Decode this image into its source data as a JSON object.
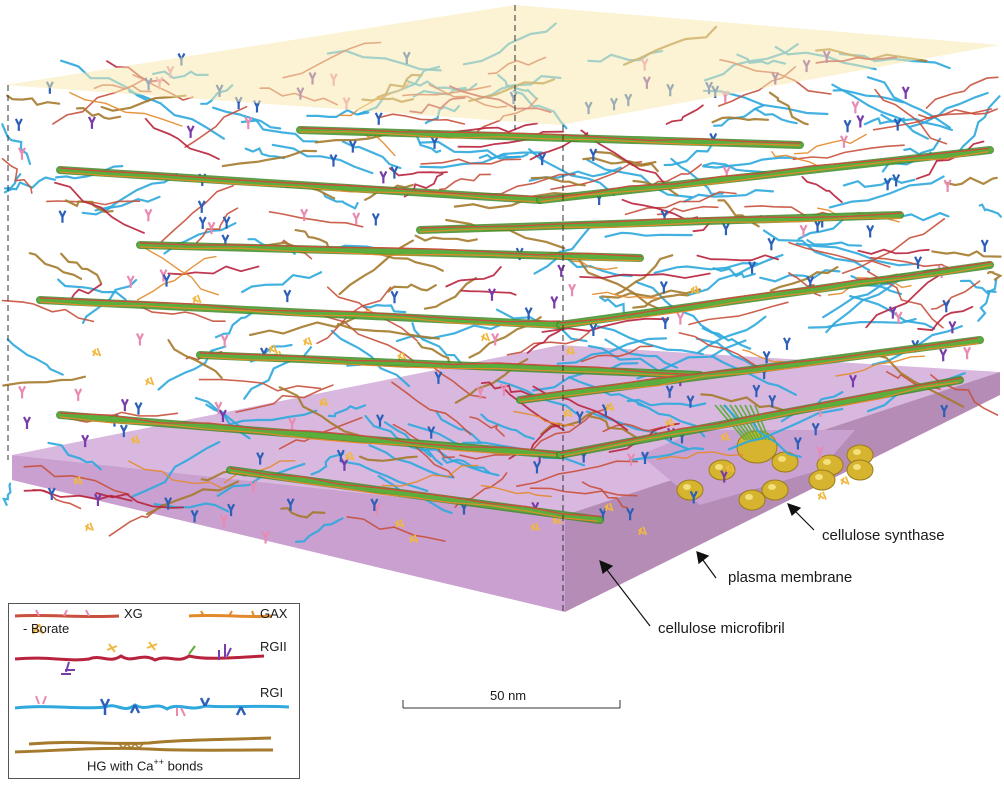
{
  "labels": {
    "cellulose_synthase": "cellulose synthase",
    "plasma_membrane": "plasma membrane",
    "cellulose_microfibril": "cellulose microfibril"
  },
  "scale_bar": {
    "label": "50 nm"
  },
  "legend": {
    "xg": "XG",
    "gax": "GAX",
    "borate": "- Borate",
    "rgii": "RGII",
    "rgi": "RGI",
    "hg": "HG with Ca",
    "hg_sup": "++",
    "hg_tail": " bonds"
  },
  "colors": {
    "membrane_top": "#d9b8df",
    "membrane_side": "#b48cb6",
    "top_plane": "#f7eab0",
    "cellulose": "#5cae3c",
    "xg": "#c8503c",
    "gax": "#e28a2a",
    "rgii": "#b8223c",
    "rgi": "#2ea8dd",
    "rgi_branch": "#2d5fb8",
    "hg": "#a57a2c",
    "borate": "#f0b840",
    "pink_side": "#e98ab2",
    "purple_side": "#7a3ca8",
    "synthase": "#d6b430"
  }
}
